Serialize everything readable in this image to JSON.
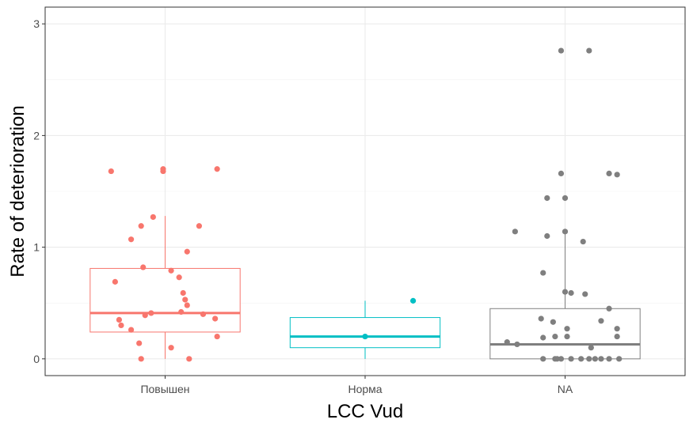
{
  "chart_data": {
    "type": "boxplot",
    "title": "",
    "xlabel": "LCC Vud",
    "ylabel": "Rate of deterioration",
    "ylim": [
      -0.15,
      3.15
    ],
    "yticks": [
      0,
      1,
      2,
      3
    ],
    "grid": true,
    "legend": "none",
    "categories": [
      "Повышен",
      "Норма",
      "NA"
    ],
    "colors": [
      "#F8766D",
      "#00BFC4",
      "#7F7F7F"
    ],
    "boxes": [
      {
        "q1": 0.24,
        "median": 0.41,
        "q3": 0.81,
        "whisker_low": 0.0,
        "whisker_high": 1.28
      },
      {
        "q1": 0.1,
        "median": 0.2,
        "q3": 0.37,
        "whisker_low": 0.0,
        "whisker_high": 0.52
      },
      {
        "q1": 0.0,
        "median": 0.13,
        "q3": 0.45,
        "whisker_low": 0.0,
        "whisker_high": 1.13
      }
    ],
    "points": [
      [
        [
          -0.27,
          1.68
        ],
        [
          -0.01,
          1.7
        ],
        [
          -0.01,
          1.68
        ],
        [
          0.26,
          1.7
        ],
        [
          -0.12,
          1.19
        ],
        [
          0.17,
          1.19
        ],
        [
          -0.06,
          1.27
        ],
        [
          -0.17,
          1.07
        ],
        [
          0.11,
          0.96
        ],
        [
          -0.11,
          0.82
        ],
        [
          0.03,
          0.79
        ],
        [
          -0.25,
          0.69
        ],
        [
          0.07,
          0.73
        ],
        [
          0.09,
          0.59
        ],
        [
          0.1,
          0.53
        ],
        [
          0.11,
          0.48
        ],
        [
          -0.07,
          0.41
        ],
        [
          0.08,
          0.42
        ],
        [
          -0.1,
          0.39
        ],
        [
          0.19,
          0.4
        ],
        [
          -0.23,
          0.35
        ],
        [
          0.25,
          0.36
        ],
        [
          -0.22,
          0.3
        ],
        [
          -0.17,
          0.26
        ],
        [
          0.26,
          0.2
        ],
        [
          -0.13,
          0.14
        ],
        [
          0.03,
          0.1
        ],
        [
          -0.12,
          0.0
        ],
        [
          0.12,
          0.0
        ]
      ],
      [
        [
          0.24,
          0.52
        ],
        [
          0.0,
          0.2
        ]
      ],
      [
        [
          -0.02,
          2.76
        ],
        [
          0.12,
          2.76
        ],
        [
          -0.02,
          1.66
        ],
        [
          0.22,
          1.66
        ],
        [
          0.26,
          1.65
        ],
        [
          -0.09,
          1.44
        ],
        [
          0.0,
          1.44
        ],
        [
          -0.25,
          1.14
        ],
        [
          0.0,
          1.14
        ],
        [
          -0.09,
          1.1
        ],
        [
          0.09,
          1.05
        ],
        [
          -0.11,
          0.77
        ],
        [
          0.0,
          0.6
        ],
        [
          0.03,
          0.59
        ],
        [
          0.1,
          0.58
        ],
        [
          0.22,
          0.45
        ],
        [
          -0.12,
          0.36
        ],
        [
          -0.06,
          0.33
        ],
        [
          0.18,
          0.34
        ],
        [
          0.01,
          0.27
        ],
        [
          0.26,
          0.27
        ],
        [
          -0.11,
          0.19
        ],
        [
          -0.05,
          0.2
        ],
        [
          0.01,
          0.2
        ],
        [
          0.26,
          0.2
        ],
        [
          -0.29,
          0.15
        ],
        [
          -0.24,
          0.13
        ],
        [
          0.13,
          0.1
        ],
        [
          -0.11,
          0.0
        ],
        [
          -0.05,
          0.0
        ],
        [
          -0.04,
          0.0
        ],
        [
          -0.02,
          0.0
        ],
        [
          0.03,
          0.0
        ],
        [
          0.08,
          0.0
        ],
        [
          0.12,
          0.0
        ],
        [
          0.15,
          0.0
        ],
        [
          0.18,
          0.0
        ],
        [
          0.22,
          0.0
        ],
        [
          0.27,
          0.0
        ]
      ]
    ]
  }
}
